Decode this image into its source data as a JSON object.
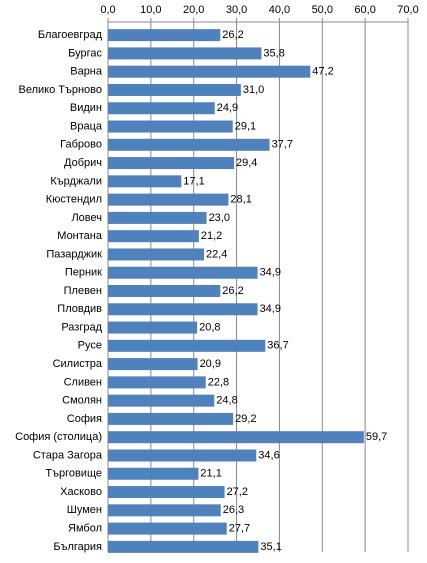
{
  "chart_data": {
    "type": "bar",
    "orientation": "horizontal",
    "color": "#4f81bd",
    "grid": true,
    "categories": [
      "Благоевград",
      "Бургас",
      "Варна",
      "Велико Търново",
      "Видин",
      "Враца",
      "Габрово",
      "Добрич",
      "Кърджали",
      "Кюстендил",
      "Ловеч",
      "Монтана",
      "Пазарджик",
      "Перник",
      "Плевен",
      "Пловдив",
      "Разград",
      "Русе",
      "Силистра",
      "Сливен",
      "Смолян",
      "София",
      "София (столица)",
      "Стара Загора",
      "Търговище",
      "Хасково",
      "Шумен",
      "Ямбол",
      "България"
    ],
    "values": [
      26.2,
      35.8,
      47.2,
      31.0,
      24.9,
      29.1,
      37.7,
      29.4,
      17.1,
      28.1,
      23.0,
      21.2,
      22.4,
      34.9,
      26.2,
      34.9,
      20.8,
      36.7,
      20.9,
      22.8,
      24.8,
      29.2,
      59.7,
      34.6,
      21.1,
      27.2,
      26.3,
      27.7,
      35.1
    ],
    "value_labels": [
      "26,2",
      "35,8",
      "47,2",
      "31,0",
      "24,9",
      "29,1",
      "37,7",
      "29,4",
      "17,1",
      "28,1",
      "23,0",
      "21,2",
      "22,4",
      "34,9",
      "26,2",
      "34,9",
      "20,8",
      "36,7",
      "20,9",
      "22,8",
      "24,8",
      "29,2",
      "59,7",
      "34,6",
      "21,1",
      "27,2",
      "26,3",
      "27,7",
      "35,1"
    ],
    "xlim": [
      0,
      70
    ],
    "xticks": [
      {
        "value": 0,
        "label": "0,0"
      },
      {
        "value": 10,
        "label": "10,0"
      },
      {
        "value": 20,
        "label": "20,0"
      },
      {
        "value": 30,
        "label": "30,0"
      },
      {
        "value": 40,
        "label": "40,0"
      },
      {
        "value": 50,
        "label": "50,0"
      },
      {
        "value": 60,
        "label": "60,0"
      },
      {
        "value": 70,
        "label": "70,0"
      }
    ]
  }
}
